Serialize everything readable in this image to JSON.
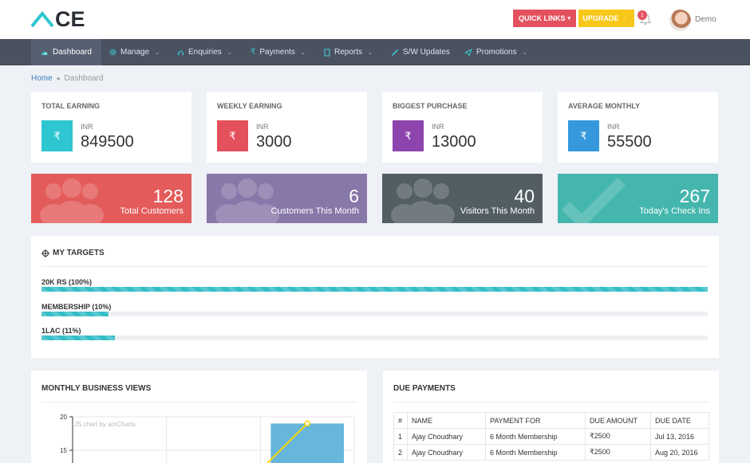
{
  "brand": {
    "logo_text": "CE"
  },
  "header": {
    "quick_links_label": "QUICK LINKS",
    "upgrade_label": "UPGRADE",
    "notification_count": "1",
    "user_name": "Demo"
  },
  "nav": {
    "items": [
      {
        "label": "Dashboard",
        "icon": "dashboard-icon",
        "has_caret": false,
        "active": true
      },
      {
        "label": "Manage",
        "icon": "gear-icon",
        "has_caret": true
      },
      {
        "label": "Enquiries",
        "icon": "headset-icon",
        "has_caret": true
      },
      {
        "label": "Payments",
        "icon": "rupee-icon",
        "has_caret": true
      },
      {
        "label": "Reports",
        "icon": "file-icon",
        "has_caret": true
      },
      {
        "label": "S/W Updates",
        "icon": "magic-wand-icon",
        "has_caret": false
      },
      {
        "label": "Promotions",
        "icon": "paper-plane-icon",
        "has_caret": true
      }
    ]
  },
  "breadcrumb": {
    "home": "Home",
    "current": "Dashboard"
  },
  "stats": [
    {
      "title": "TOTAL EARNING",
      "currency": "INR",
      "value": "849500",
      "color": "#2ec6d0",
      "icon": "rupee-icon"
    },
    {
      "title": "WEEKLY EARNING",
      "currency": "INR",
      "value": "3000",
      "color": "#e4505b",
      "icon": "rupee-icon"
    },
    {
      "title": "BIGGEST PURCHASE",
      "currency": "INR",
      "value": "13000",
      "color": "#8d44ad",
      "icon": "rupee-icon"
    },
    {
      "title": "AVERAGE MONTHLY",
      "currency": "INR",
      "value": "55500",
      "color": "#3598dc",
      "icon": "rupee-icon"
    }
  ],
  "tiles": [
    {
      "number": "128",
      "label": "Total Customers",
      "color": "#e35b5a",
      "icon": "users-icon"
    },
    {
      "number": "6",
      "label": "Customers This Month",
      "color": "#8877a9",
      "icon": "users-icon"
    },
    {
      "number": "40",
      "label": "Visitors This Month",
      "color": "#525e64",
      "icon": "users-icon"
    },
    {
      "number": "267",
      "label": "Today's Check Ins",
      "color": "#44b6ae",
      "icon": "check-icon"
    }
  ],
  "targets": {
    "title": "MY TARGETS",
    "items": [
      {
        "label": "20K RS (100%)",
        "percent": 100
      },
      {
        "label": "MEMBERSHIP (10%)",
        "percent": 10
      },
      {
        "label": "1LAC (11%)",
        "percent": 11
      }
    ]
  },
  "monthly": {
    "title": "MONTHLY BUSINESS VIEWS",
    "credit": "JS chart by amCharts"
  },
  "chart_data": {
    "type": "bar",
    "title": "",
    "xlabel": "",
    "ylabel": "",
    "y_ticks": [
      20,
      15
    ],
    "ylim": [
      0,
      20
    ],
    "categories": [
      "",
      "",
      ""
    ],
    "series": [
      {
        "type": "bar",
        "values": [
          null,
          null,
          19
        ],
        "color": "#67b7dc"
      },
      {
        "type": "line",
        "values": [
          null,
          null,
          19
        ],
        "color": "#fdd400"
      }
    ],
    "grid": true
  },
  "due_payments": {
    "title": "DUE PAYMENTS",
    "columns": [
      "#",
      "NAME",
      "PAYMENT FOR",
      "DUE AMOUNT",
      "DUE DATE"
    ],
    "rows": [
      [
        "1",
        "Ajay Choudhary",
        "6 Month Membership",
        "₹2500",
        "Jul 13, 2016"
      ],
      [
        "2",
        "Ajay Choudhary",
        "6 Month Membership",
        "₹2500",
        "Aug 20, 2016"
      ]
    ]
  }
}
